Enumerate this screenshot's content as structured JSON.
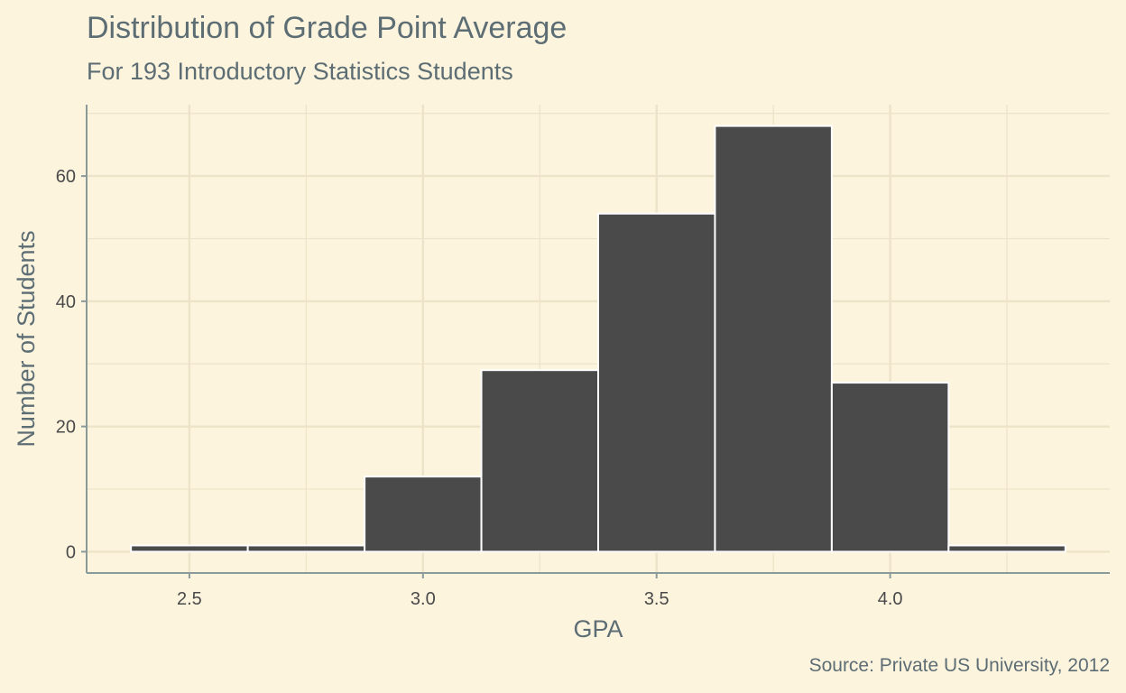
{
  "chart_data": {
    "type": "bar",
    "title": "Distribution of Grade Point Average",
    "subtitle": "For 193 Introductory Statistics Students",
    "caption": "Source: Private US University, 2012",
    "xlabel": "GPA",
    "ylabel": "Number of Students",
    "bin_width": 0.25,
    "bins": [
      {
        "start": 2.375,
        "end": 2.625,
        "count": 1
      },
      {
        "start": 2.625,
        "end": 2.875,
        "count": 1
      },
      {
        "start": 2.875,
        "end": 3.125,
        "count": 12
      },
      {
        "start": 3.125,
        "end": 3.375,
        "count": 29
      },
      {
        "start": 3.375,
        "end": 3.625,
        "count": 54
      },
      {
        "start": 3.625,
        "end": 3.875,
        "count": 68
      },
      {
        "start": 3.875,
        "end": 4.125,
        "count": 27
      },
      {
        "start": 4.125,
        "end": 4.375,
        "count": 1
      }
    ],
    "xlim": [
      2.28,
      4.47
    ],
    "ylim": [
      -3.4,
      71.4
    ],
    "x_ticks": [
      2.5,
      3.0,
      3.5,
      4.0
    ],
    "x_tick_labels": [
      "2.5",
      "3.0",
      "3.5",
      "4.0"
    ],
    "y_ticks": [
      0,
      20,
      40,
      60
    ],
    "y_tick_labels": [
      "0",
      "20",
      "40",
      "60"
    ],
    "grid": true,
    "colors": {
      "background": "#fdf4de",
      "bar_fill": "#4a4a4a",
      "bar_outline": "#ffffff",
      "grid": "#ede3c8",
      "axis_line": "#8a9a9a",
      "text": "#5d6d74"
    }
  }
}
